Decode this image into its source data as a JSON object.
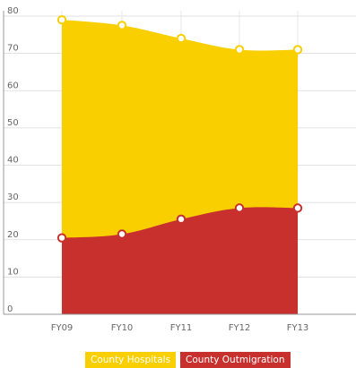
{
  "chart_data": {
    "type": "area",
    "stacked": false,
    "categories": [
      "FY09",
      "FY10",
      "FY11",
      "FY12",
      "FY13"
    ],
    "series": [
      {
        "name": "County Hospitals",
        "values": [
          79,
          77.5,
          74,
          71,
          71
        ],
        "color": "#F9CF00"
      },
      {
        "name": "County Outmigration",
        "values": [
          20.5,
          21.5,
          25.5,
          28.5,
          28.5
        ],
        "color": "#C8302E"
      }
    ],
    "y_ticks": [
      "0",
      "10",
      "20",
      "30",
      "40",
      "50",
      "60",
      "70",
      "80"
    ],
    "ylim": [
      0,
      80
    ],
    "grid": true,
    "legend_position": "bottom"
  }
}
